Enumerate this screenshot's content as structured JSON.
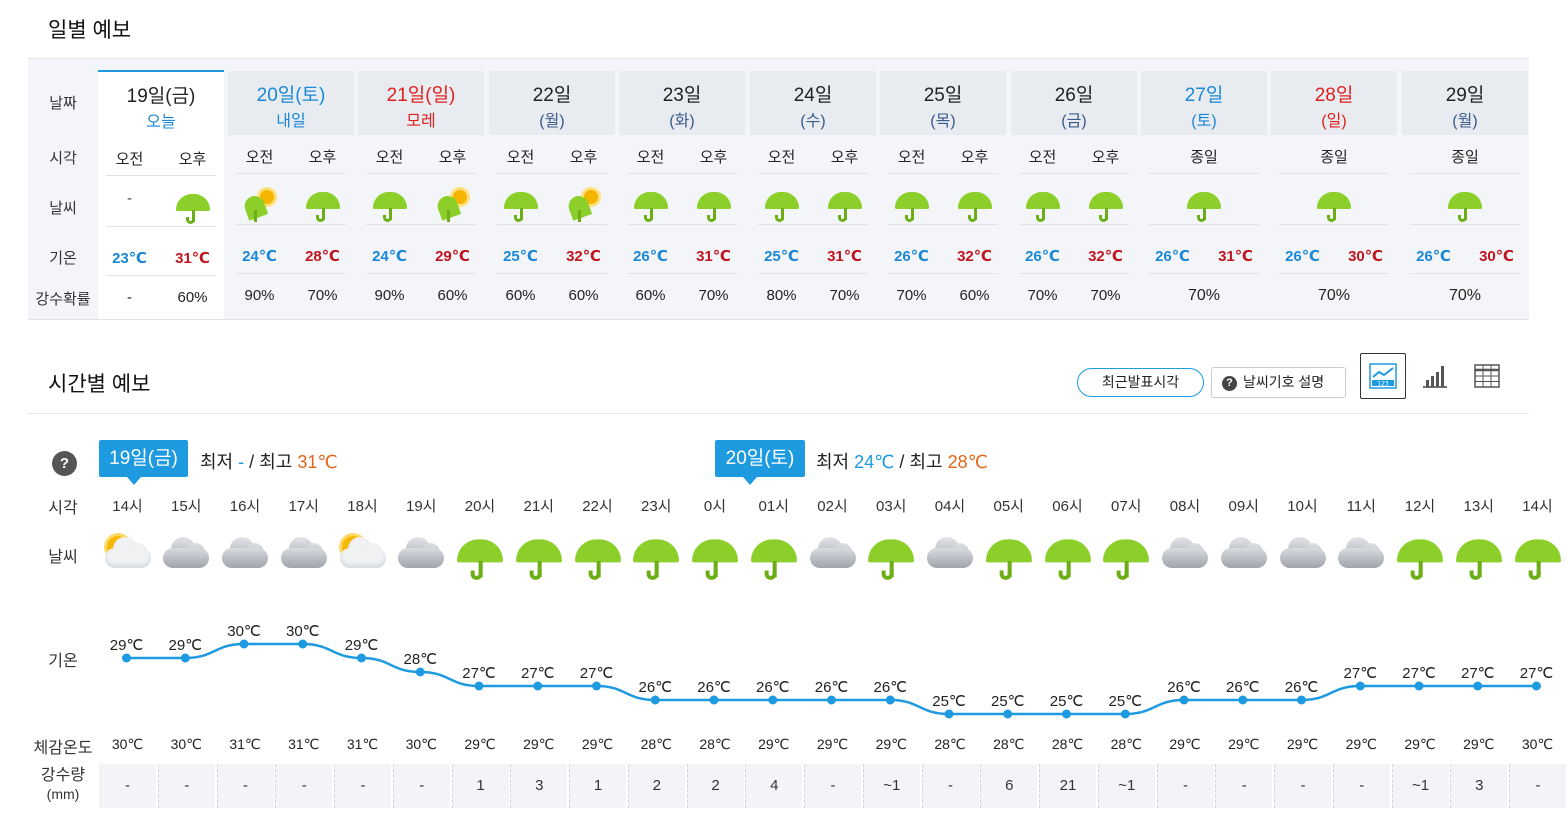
{
  "daily": {
    "title": "일별 예보",
    "labels": {
      "date": "날짜",
      "time": "시각",
      "weather": "날씨",
      "temp": "기온",
      "rain": "강수확률"
    },
    "days": [
      {
        "date": "19일(금)",
        "sub": "오늘",
        "color": "dark",
        "subcolor": "blue",
        "today": true,
        "split": true,
        "am_label": "오전",
        "pm_label": "오후",
        "am_icon": "none",
        "pm_icon": "umbrella",
        "am_text": "-",
        "low": "23℃",
        "high": "31℃",
        "am_rain": "-",
        "pm_rain": "60%"
      },
      {
        "date": "20일(토)",
        "sub": "내일",
        "color": "blue",
        "subcolor": "blue",
        "split": true,
        "am_label": "오전",
        "pm_label": "오후",
        "am_icon": "umbrella-sun",
        "pm_icon": "umbrella",
        "low": "24℃",
        "high": "28℃",
        "am_rain": "90%",
        "pm_rain": "70%"
      },
      {
        "date": "21일(일)",
        "sub": "모레",
        "color": "red",
        "subcolor": "red",
        "split": true,
        "am_label": "오전",
        "pm_label": "오후",
        "am_icon": "umbrella",
        "pm_icon": "umbrella-sun",
        "low": "24℃",
        "high": "29℃",
        "am_rain": "90%",
        "pm_rain": "60%"
      },
      {
        "date": "22일",
        "sub": "(월)",
        "color": "dark",
        "subcolor": "sub",
        "split": true,
        "am_label": "오전",
        "pm_label": "오후",
        "am_icon": "umbrella",
        "pm_icon": "umbrella-sun",
        "low": "25℃",
        "high": "32℃",
        "am_rain": "60%",
        "pm_rain": "60%"
      },
      {
        "date": "23일",
        "sub": "(화)",
        "color": "dark",
        "subcolor": "sub",
        "split": true,
        "am_label": "오전",
        "pm_label": "오후",
        "am_icon": "umbrella",
        "pm_icon": "umbrella",
        "low": "26℃",
        "high": "31℃",
        "am_rain": "60%",
        "pm_rain": "70%"
      },
      {
        "date": "24일",
        "sub": "(수)",
        "color": "dark",
        "subcolor": "sub",
        "split": true,
        "am_label": "오전",
        "pm_label": "오후",
        "am_icon": "umbrella",
        "pm_icon": "umbrella",
        "low": "25℃",
        "high": "31℃",
        "am_rain": "80%",
        "pm_rain": "70%"
      },
      {
        "date": "25일",
        "sub": "(목)",
        "color": "dark",
        "subcolor": "sub",
        "split": true,
        "am_label": "오전",
        "pm_label": "오후",
        "am_icon": "umbrella",
        "pm_icon": "umbrella",
        "low": "26℃",
        "high": "32℃",
        "am_rain": "70%",
        "pm_rain": "60%"
      },
      {
        "date": "26일",
        "sub": "(금)",
        "color": "dark",
        "subcolor": "sub",
        "split": true,
        "am_label": "오전",
        "pm_label": "오후",
        "am_icon": "umbrella",
        "pm_icon": "umbrella",
        "low": "26℃",
        "high": "32℃",
        "am_rain": "70%",
        "pm_rain": "70%"
      },
      {
        "date": "27일",
        "sub": "(토)",
        "color": "blue",
        "subcolor": "blue",
        "split": false,
        "all_label": "종일",
        "icon": "umbrella",
        "low": "26℃",
        "high": "31℃",
        "rain": "70%"
      },
      {
        "date": "28일",
        "sub": "(일)",
        "color": "red",
        "subcolor": "red",
        "split": false,
        "all_label": "종일",
        "icon": "umbrella",
        "low": "26℃",
        "high": "30℃",
        "rain": "70%"
      },
      {
        "date": "29일",
        "sub": "(월)",
        "color": "dark",
        "subcolor": "sub",
        "split": false,
        "all_label": "종일",
        "icon": "umbrella",
        "low": "26℃",
        "high": "30℃",
        "rain": "70%"
      }
    ]
  },
  "hourly": {
    "title": "시간별 예보",
    "recent_button": "최근발표시각",
    "legend_button": "날씨기호 설명",
    "help": "?",
    "labels": {
      "time": "시각",
      "weather": "날씨",
      "temp": "기온",
      "feel": "체감온도",
      "rain": "강수량",
      "rain_unit": "(mm)"
    },
    "day_tags": [
      {
        "tag": "19일(금)",
        "min_label": "최저",
        "min": "-",
        "slash": "/",
        "max_label": "최고",
        "max": "31℃"
      },
      {
        "tag": "20일(토)",
        "min_label": "최저",
        "min": "24℃",
        "slash": "/",
        "max_label": "최고",
        "max": "28℃"
      }
    ],
    "hours": [
      {
        "time": "14시",
        "icon": "sun-cloud",
        "temp": 29,
        "temp_label": "29℃",
        "feel": "30℃",
        "rain": "-"
      },
      {
        "time": "15시",
        "icon": "cloud",
        "temp": 29,
        "temp_label": "29℃",
        "feel": "30℃",
        "rain": "-"
      },
      {
        "time": "16시",
        "icon": "cloud",
        "temp": 30,
        "temp_label": "30℃",
        "feel": "31℃",
        "rain": "-"
      },
      {
        "time": "17시",
        "icon": "cloud",
        "temp": 30,
        "temp_label": "30℃",
        "feel": "31℃",
        "rain": "-"
      },
      {
        "time": "18시",
        "icon": "sun-cloud",
        "temp": 29,
        "temp_label": "29℃",
        "feel": "31℃",
        "rain": "-"
      },
      {
        "time": "19시",
        "icon": "cloud",
        "temp": 28,
        "temp_label": "28℃",
        "feel": "30℃",
        "rain": "-"
      },
      {
        "time": "20시",
        "icon": "umbrella",
        "temp": 27,
        "temp_label": "27℃",
        "feel": "29℃",
        "rain": "1"
      },
      {
        "time": "21시",
        "icon": "umbrella",
        "temp": 27,
        "temp_label": "27℃",
        "feel": "29℃",
        "rain": "3"
      },
      {
        "time": "22시",
        "icon": "umbrella",
        "temp": 27,
        "temp_label": "27℃",
        "feel": "29℃",
        "rain": "1"
      },
      {
        "time": "23시",
        "icon": "umbrella",
        "temp": 26,
        "temp_label": "26℃",
        "feel": "28℃",
        "rain": "2"
      },
      {
        "time": "0시",
        "icon": "umbrella",
        "temp": 26,
        "temp_label": "26℃",
        "feel": "28℃",
        "rain": "2"
      },
      {
        "time": "01시",
        "icon": "umbrella",
        "temp": 26,
        "temp_label": "26℃",
        "feel": "29℃",
        "rain": "4"
      },
      {
        "time": "02시",
        "icon": "cloud",
        "temp": 26,
        "temp_label": "26℃",
        "feel": "29℃",
        "rain": "-"
      },
      {
        "time": "03시",
        "icon": "umbrella",
        "temp": 26,
        "temp_label": "26℃",
        "feel": "29℃",
        "rain": "~1"
      },
      {
        "time": "04시",
        "icon": "cloud",
        "temp": 25,
        "temp_label": "25℃",
        "feel": "28℃",
        "rain": "-"
      },
      {
        "time": "05시",
        "icon": "umbrella",
        "temp": 25,
        "temp_label": "25℃",
        "feel": "28℃",
        "rain": "6"
      },
      {
        "time": "06시",
        "icon": "umbrella",
        "temp": 25,
        "temp_label": "25℃",
        "feel": "28℃",
        "rain": "21"
      },
      {
        "time": "07시",
        "icon": "umbrella",
        "temp": 25,
        "temp_label": "25℃",
        "feel": "28℃",
        "rain": "~1"
      },
      {
        "time": "08시",
        "icon": "cloud",
        "temp": 26,
        "temp_label": "26℃",
        "feel": "29℃",
        "rain": "-"
      },
      {
        "time": "09시",
        "icon": "cloud",
        "temp": 26,
        "temp_label": "26℃",
        "feel": "29℃",
        "rain": "-"
      },
      {
        "time": "10시",
        "icon": "cloud",
        "temp": 26,
        "temp_label": "26℃",
        "feel": "29℃",
        "rain": "-"
      },
      {
        "time": "11시",
        "icon": "cloud",
        "temp": 27,
        "temp_label": "27℃",
        "feel": "29℃",
        "rain": "-"
      },
      {
        "time": "12시",
        "icon": "umbrella",
        "temp": 27,
        "temp_label": "27℃",
        "feel": "29℃",
        "rain": "~1"
      },
      {
        "time": "13시",
        "icon": "umbrella",
        "temp": 27,
        "temp_label": "27℃",
        "feel": "29℃",
        "rain": "3"
      },
      {
        "time": "14시",
        "icon": "umbrella",
        "temp": 27,
        "temp_label": "27℃",
        "feel": "30℃",
        "rain": "-"
      }
    ]
  },
  "colors": {
    "accent": "#1e9be0",
    "low": "#1a88d6",
    "high": "#c0141e",
    "umbrella": "#8ccf2a"
  }
}
